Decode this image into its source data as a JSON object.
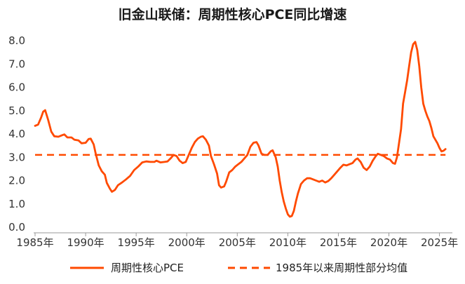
{
  "chart_data": {
    "type": "line",
    "title": "旧金山联储：周期性核心PCE同比增速",
    "xlabel": "",
    "ylabel": "",
    "xlim": [
      1985,
      2026
    ],
    "ylim": [
      0,
      8
    ],
    "y_ticks": [
      "0.0",
      "1.0",
      "2.0",
      "3.0",
      "4.0",
      "5.0",
      "6.0",
      "7.0",
      "8.0"
    ],
    "x_ticks": [
      {
        "value": 1985,
        "label": "1985年"
      },
      {
        "value": 1990,
        "label": "1990年"
      },
      {
        "value": 1995,
        "label": "1995年"
      },
      {
        "value": 2000,
        "label": "2000年"
      },
      {
        "value": 2005,
        "label": "2005年"
      },
      {
        "value": 2010,
        "label": "2010年"
      },
      {
        "value": 2015,
        "label": "2015年"
      },
      {
        "value": 2020,
        "label": "2020年"
      },
      {
        "value": 2025,
        "label": "2025年"
      }
    ],
    "grid": false,
    "legend_position": "bottom",
    "series": [
      {
        "name": "周期性核心PCE",
        "color": "#FF4A00",
        "style": "solid",
        "points": [
          [
            1985.0,
            4.35
          ],
          [
            1985.3,
            4.4
          ],
          [
            1985.6,
            4.7
          ],
          [
            1985.8,
            4.95
          ],
          [
            1986.0,
            5.02
          ],
          [
            1986.3,
            4.6
          ],
          [
            1986.6,
            4.1
          ],
          [
            1986.9,
            3.9
          ],
          [
            1987.3,
            3.88
          ],
          [
            1987.7,
            3.95
          ],
          [
            1987.9,
            3.98
          ],
          [
            1988.2,
            3.85
          ],
          [
            1988.6,
            3.85
          ],
          [
            1988.9,
            3.75
          ],
          [
            1989.3,
            3.72
          ],
          [
            1989.6,
            3.6
          ],
          [
            1990.0,
            3.62
          ],
          [
            1990.3,
            3.78
          ],
          [
            1990.5,
            3.8
          ],
          [
            1990.8,
            3.55
          ],
          [
            1991.0,
            3.15
          ],
          [
            1991.3,
            2.65
          ],
          [
            1991.6,
            2.4
          ],
          [
            1991.9,
            2.25
          ],
          [
            1992.1,
            1.9
          ],
          [
            1992.4,
            1.65
          ],
          [
            1992.6,
            1.52
          ],
          [
            1992.9,
            1.6
          ],
          [
            1993.2,
            1.8
          ],
          [
            1993.6,
            1.92
          ],
          [
            1994.0,
            2.05
          ],
          [
            1994.4,
            2.2
          ],
          [
            1994.8,
            2.45
          ],
          [
            1995.2,
            2.6
          ],
          [
            1995.6,
            2.78
          ],
          [
            1996.0,
            2.82
          ],
          [
            1996.4,
            2.8
          ],
          [
            1996.8,
            2.8
          ],
          [
            1997.0,
            2.85
          ],
          [
            1997.4,
            2.78
          ],
          [
            1997.8,
            2.8
          ],
          [
            1998.1,
            2.82
          ],
          [
            1998.4,
            2.95
          ],
          [
            1998.7,
            3.1
          ],
          [
            1999.0,
            3.05
          ],
          [
            1999.3,
            2.85
          ],
          [
            1999.6,
            2.75
          ],
          [
            1999.9,
            2.8
          ],
          [
            2000.2,
            3.1
          ],
          [
            2000.5,
            3.4
          ],
          [
            2000.8,
            3.65
          ],
          [
            2001.1,
            3.8
          ],
          [
            2001.4,
            3.88
          ],
          [
            2001.6,
            3.9
          ],
          [
            2001.9,
            3.75
          ],
          [
            2002.2,
            3.5
          ],
          [
            2002.4,
            3.05
          ],
          [
            2002.7,
            2.7
          ],
          [
            2003.0,
            2.3
          ],
          [
            2003.2,
            1.8
          ],
          [
            2003.4,
            1.7
          ],
          [
            2003.7,
            1.75
          ],
          [
            2003.9,
            1.95
          ],
          [
            2004.2,
            2.35
          ],
          [
            2004.5,
            2.45
          ],
          [
            2004.8,
            2.6
          ],
          [
            2005.1,
            2.7
          ],
          [
            2005.4,
            2.8
          ],
          [
            2005.7,
            2.95
          ],
          [
            2006.0,
            3.1
          ],
          [
            2006.3,
            3.45
          ],
          [
            2006.6,
            3.62
          ],
          [
            2006.9,
            3.65
          ],
          [
            2007.1,
            3.5
          ],
          [
            2007.4,
            3.15
          ],
          [
            2007.7,
            3.1
          ],
          [
            2008.0,
            3.1
          ],
          [
            2008.3,
            3.25
          ],
          [
            2008.5,
            3.3
          ],
          [
            2008.8,
            3.0
          ],
          [
            2009.0,
            2.6
          ],
          [
            2009.2,
            2.0
          ],
          [
            2009.4,
            1.5
          ],
          [
            2009.6,
            1.1
          ],
          [
            2009.8,
            0.8
          ],
          [
            2010.0,
            0.55
          ],
          [
            2010.2,
            0.45
          ],
          [
            2010.4,
            0.48
          ],
          [
            2010.6,
            0.7
          ],
          [
            2010.8,
            1.1
          ],
          [
            2011.0,
            1.45
          ],
          [
            2011.3,
            1.85
          ],
          [
            2011.6,
            2.0
          ],
          [
            2011.9,
            2.1
          ],
          [
            2012.2,
            2.1
          ],
          [
            2012.5,
            2.05
          ],
          [
            2012.8,
            2.0
          ],
          [
            2013.1,
            1.95
          ],
          [
            2013.4,
            2.0
          ],
          [
            2013.7,
            1.92
          ],
          [
            2014.0,
            1.98
          ],
          [
            2014.3,
            2.1
          ],
          [
            2014.6,
            2.25
          ],
          [
            2014.9,
            2.4
          ],
          [
            2015.2,
            2.55
          ],
          [
            2015.5,
            2.68
          ],
          [
            2015.8,
            2.65
          ],
          [
            2016.1,
            2.7
          ],
          [
            2016.4,
            2.75
          ],
          [
            2016.7,
            2.9
          ],
          [
            2016.9,
            2.95
          ],
          [
            2017.2,
            2.8
          ],
          [
            2017.5,
            2.55
          ],
          [
            2017.8,
            2.45
          ],
          [
            2018.1,
            2.6
          ],
          [
            2018.4,
            2.85
          ],
          [
            2018.7,
            3.05
          ],
          [
            2018.9,
            3.15
          ],
          [
            2019.2,
            3.1
          ],
          [
            2019.5,
            3.05
          ],
          [
            2019.8,
            2.95
          ],
          [
            2020.1,
            2.9
          ],
          [
            2020.4,
            2.75
          ],
          [
            2020.6,
            2.72
          ],
          [
            2020.8,
            3.0
          ],
          [
            2021.0,
            3.6
          ],
          [
            2021.2,
            4.2
          ],
          [
            2021.4,
            5.3
          ],
          [
            2021.6,
            5.8
          ],
          [
            2021.8,
            6.3
          ],
          [
            2022.0,
            6.9
          ],
          [
            2022.2,
            7.5
          ],
          [
            2022.4,
            7.85
          ],
          [
            2022.6,
            7.95
          ],
          [
            2022.8,
            7.6
          ],
          [
            2023.0,
            6.9
          ],
          [
            2023.2,
            6.0
          ],
          [
            2023.4,
            5.3
          ],
          [
            2023.6,
            5.0
          ],
          [
            2023.8,
            4.75
          ],
          [
            2024.0,
            4.55
          ],
          [
            2024.2,
            4.25
          ],
          [
            2024.4,
            3.9
          ],
          [
            2024.6,
            3.75
          ],
          [
            2024.8,
            3.6
          ],
          [
            2025.0,
            3.4
          ],
          [
            2025.2,
            3.25
          ],
          [
            2025.4,
            3.28
          ],
          [
            2025.6,
            3.35
          ]
        ]
      },
      {
        "name": "1985年以来周期性部分均值",
        "color": "#FF4A00",
        "style": "dashed",
        "points": [
          [
            1985.0,
            3.1
          ],
          [
            2025.6,
            3.1
          ]
        ]
      }
    ]
  }
}
